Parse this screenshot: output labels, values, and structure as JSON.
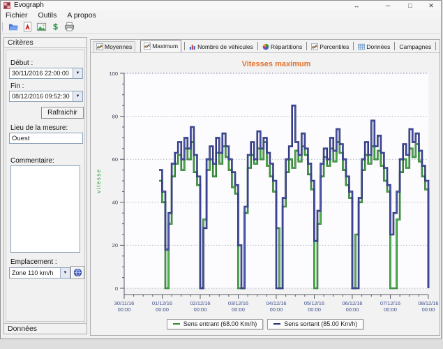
{
  "window": {
    "title": "Evograph",
    "controls": {
      "resize": "↔",
      "minimize": "─",
      "maximize": "□",
      "close": "✕"
    }
  },
  "menu": {
    "items": [
      "Fichier",
      "Outils",
      "A propos"
    ]
  },
  "toolbar": {
    "icons": [
      "open-folder-icon",
      "pdf-export-icon",
      "image-export-icon",
      "excel-export-icon",
      "print-icon"
    ]
  },
  "sidebar": {
    "criteria_header": "Critères",
    "debut_label": "Début :",
    "debut_value": "30/11/2016 22:00:00",
    "fin_label": "Fin :",
    "fin_value": "08/12/2016 09:52:30",
    "refresh_button": "Rafraichir",
    "lieu_label": "Lieu de la mesure:",
    "lieu_value": "Ouest",
    "comment_label": "Commentaire:",
    "comment_value": "",
    "emplacement_label": "Emplacement :",
    "emplacement_value": "Zone 110 km/h",
    "donnees_header": "Données"
  },
  "tabs": [
    {
      "label": "Moyennes",
      "icon": "line-chart-icon"
    },
    {
      "label": "Maximum",
      "icon": "line-chart-icon",
      "selected": true
    },
    {
      "label": "Nombre de véhicules",
      "icon": "bar-chart-icon"
    },
    {
      "label": "Répartitions",
      "icon": "pie-chart-icon"
    },
    {
      "label": "Percentiles",
      "icon": "line-chart-icon"
    },
    {
      "label": "Données",
      "icon": "table-icon"
    },
    {
      "label": "Campagnes",
      "icon": ""
    }
  ],
  "chart_data": {
    "type": "line",
    "step": true,
    "title": "Vitesses maximum",
    "ylabel": "vitesse",
    "xlabel": "",
    "ylim": [
      0,
      100
    ],
    "yticks": [
      0,
      20,
      40,
      60,
      80,
      100
    ],
    "y_minor_step": 5,
    "grid": true,
    "legend_position": "bottom",
    "x_axis_start": "30/11/2016 00:00",
    "x_axis_end": "08/12/2016 00:00",
    "x_offset_hours": 22,
    "x_step_hours": 2,
    "x_minor_step_hours": 6,
    "x_tick_labels": [
      {
        "date": "30/11/16",
        "time": "00:00"
      },
      {
        "date": "01/12/16",
        "time": "00:00"
      },
      {
        "date": "02/12/16",
        "time": "00:00"
      },
      {
        "date": "03/12/16",
        "time": "00:00"
      },
      {
        "date": "04/12/16",
        "time": "00:00"
      },
      {
        "date": "05/12/16",
        "time": "00:00"
      },
      {
        "date": "06/12/16",
        "time": "00:00"
      },
      {
        "date": "07/12/16",
        "time": "00:00"
      },
      {
        "date": "08/12/16",
        "time": "00:00"
      }
    ],
    "style": {
      "title_color": "#e2732e",
      "plot_bg": "#fcfcfe",
      "grid_color": "#b0b4c4",
      "grid_top_color": "#6b74a8",
      "axis_color": "#5a5a66",
      "ytick_color": "#3c4258",
      "xtick_color": "#3d4e8e",
      "ylabel_color": "#2f9e33"
    },
    "series": [
      {
        "name": "Sens entrant (68.00 Km/h)",
        "max": 68.0,
        "color_outline": "#1d691f",
        "color_core": "#4fae52",
        "legend_color": "#2f8a31",
        "values": [
          50,
          40,
          0,
          30,
          52,
          58,
          62,
          55,
          65,
          60,
          68,
          54,
          48,
          0,
          32,
          55,
          60,
          52,
          63,
          58,
          66,
          61,
          55,
          47,
          44,
          0,
          0,
          35,
          56,
          62,
          58,
          65,
          60,
          68,
          57,
          52,
          45,
          28,
          0,
          38,
          54,
          60,
          56,
          64,
          59,
          66,
          62,
          53,
          46,
          0,
          30,
          52,
          61,
          57,
          65,
          59,
          68,
          63,
          55,
          48,
          42,
          0,
          25,
          40,
          55,
          62,
          58,
          66,
          60,
          64,
          57,
          50,
          45,
          0,
          0,
          32,
          54,
          60,
          56,
          65,
          61,
          67,
          59,
          52,
          46,
          0
        ]
      },
      {
        "name": "Sens sortant (85.00 Km/h)",
        "max": 85.0,
        "color_outline": "#20276b",
        "color_core": "#4d57aa",
        "legend_color": "#28306e",
        "values": [
          55,
          45,
          18,
          35,
          58,
          63,
          68,
          60,
          70,
          65,
          75,
          62,
          52,
          0,
          28,
          60,
          66,
          58,
          70,
          63,
          72,
          66,
          60,
          54,
          48,
          20,
          0,
          38,
          62,
          68,
          60,
          73,
          65,
          70,
          63,
          58,
          50,
          0,
          0,
          42,
          60,
          66,
          85,
          68,
          62,
          72,
          65,
          58,
          50,
          22,
          36,
          58,
          65,
          60,
          70,
          64,
          74,
          67,
          60,
          52,
          45,
          0,
          0,
          42,
          60,
          68,
          62,
          78,
          66,
          71,
          63,
          56,
          48,
          25,
          35,
          45,
          60,
          67,
          62,
          74,
          68,
          72,
          64,
          57,
          50,
          0
        ]
      }
    ]
  }
}
